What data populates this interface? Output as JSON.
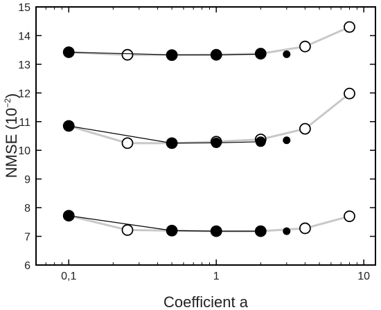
{
  "chart_data": {
    "type": "scatter",
    "xlabel": "Coefficient a",
    "ylabel": {
      "text": "NMSE (10",
      "exp": "−2",
      "close": ")"
    },
    "x_scale": "log",
    "xlim": [
      0.06,
      12
    ],
    "ylim": [
      6,
      15
    ],
    "x_ticks": [
      {
        "value": 0.1,
        "label": "0,1"
      },
      {
        "value": 1,
        "label": "1"
      },
      {
        "value": 10,
        "label": "10"
      }
    ],
    "y_ticks": [
      6,
      7,
      8,
      9,
      10,
      11,
      12,
      13,
      14,
      15
    ],
    "grid": false,
    "series": [
      {
        "marker": "open",
        "color": "#c8c8c8",
        "x": [
          0.1,
          0.25,
          0.5,
          1,
          2,
          4,
          8
        ],
        "y": [
          13.42,
          13.33,
          13.32,
          13.33,
          13.37,
          13.62,
          14.3
        ]
      },
      {
        "marker": "filled",
        "color": "#000000",
        "x": [
          0.1,
          0.5,
          1,
          2
        ],
        "y": [
          13.42,
          13.33,
          13.33,
          13.35
        ],
        "extra_point": {
          "x": 3,
          "y": 13.35
        }
      },
      {
        "marker": "open",
        "color": "#c8c8c8",
        "x": [
          0.1,
          0.25,
          0.5,
          1,
          2,
          4,
          8
        ],
        "y": [
          10.85,
          10.25,
          10.25,
          10.3,
          10.38,
          10.75,
          11.98
        ]
      },
      {
        "marker": "filled",
        "color": "#000000",
        "x": [
          0.1,
          0.5,
          1,
          2
        ],
        "y": [
          10.85,
          10.25,
          10.26,
          10.3
        ],
        "extra_point": {
          "x": 3,
          "y": 10.35
        }
      },
      {
        "marker": "open",
        "color": "#c8c8c8",
        "x": [
          0.1,
          0.25,
          0.5,
          1,
          2,
          4,
          8
        ],
        "y": [
          7.72,
          7.22,
          7.2,
          7.18,
          7.18,
          7.28,
          7.7
        ]
      },
      {
        "marker": "filled",
        "color": "#000000",
        "x": [
          0.1,
          0.5,
          1,
          2
        ],
        "y": [
          7.72,
          7.2,
          7.18,
          7.18
        ],
        "extra_point": {
          "x": 3,
          "y": 7.18
        }
      }
    ]
  }
}
